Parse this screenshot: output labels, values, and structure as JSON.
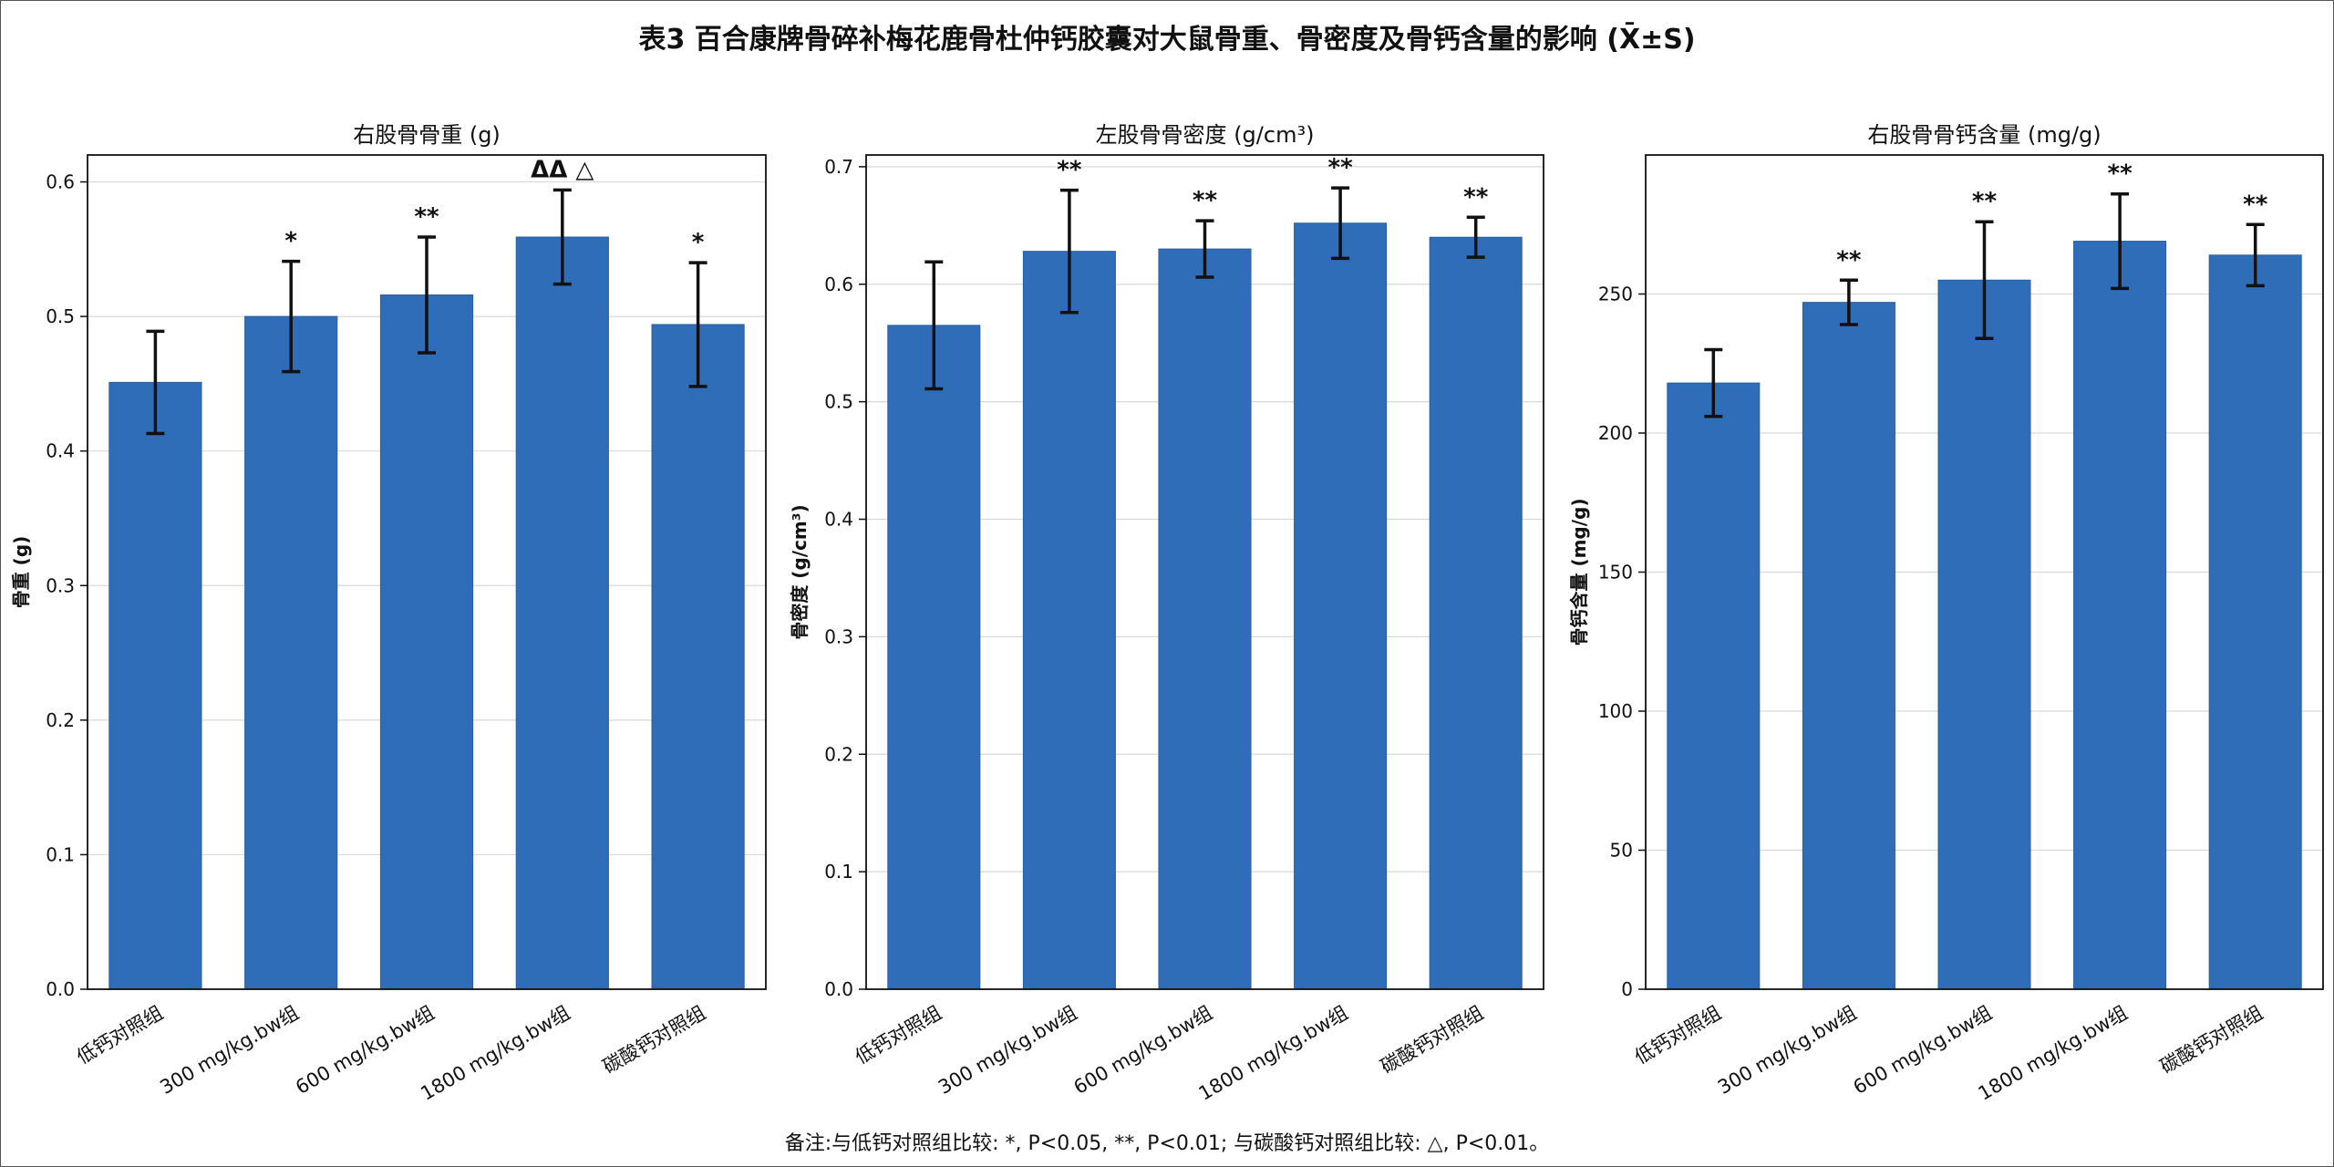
{
  "title": "表3 百合康牌骨碎补梅花鹿骨杜仲钙胶囊对大鼠骨重、骨密度及骨钙含量的影响 (X̄±S)",
  "footnote": "备注:与低钙对照组比较: *, P<0.05, **, P<0.01; 与碳酸钙对照组比较: △, P<0.01。",
  "colors": {
    "bar": "#2F6DB9",
    "bar_edge": "#2A5F9F",
    "error": "#111111",
    "grid": "#d9d9d9"
  },
  "chart_data": [
    {
      "type": "bar",
      "title": "右股骨骨重 (g)",
      "ylabel": "骨重 (g)",
      "categories": [
        "低钙对照组",
        "300 mg/kg.bw组",
        "600 mg/kg.bw组",
        "1800 mg/kg.bw组",
        "碳酸钙对照组"
      ],
      "values": [
        0.451,
        0.5,
        0.516,
        0.559,
        0.494
      ],
      "errors": [
        0.038,
        0.041,
        0.043,
        0.035,
        0.046
      ],
      "annotations": [
        "",
        "*",
        "**",
        "ΔΔ △",
        "*"
      ],
      "ylim": [
        0,
        0.62
      ],
      "yticks": [
        0.0,
        0.1,
        0.2,
        0.3,
        0.4,
        0.5,
        0.6
      ],
      "ytick_labels": [
        "0.0",
        "0.1",
        "0.2",
        "0.3",
        "0.4",
        "0.5",
        "0.6"
      ],
      "grid": true
    },
    {
      "type": "bar",
      "title": "左股骨骨密度 (g/cm³)",
      "ylabel": "骨密度 (g/cm³)",
      "categories": [
        "低钙对照组",
        "300 mg/kg.bw组",
        "600 mg/kg.bw组",
        "1800 mg/kg.bw组",
        "碳酸钙对照组"
      ],
      "values": [
        0.565,
        0.628,
        0.63,
        0.652,
        0.64
      ],
      "errors": [
        0.054,
        0.052,
        0.024,
        0.03,
        0.017
      ],
      "annotations": [
        "",
        "**",
        "**",
        "**",
        "**"
      ],
      "ylim": [
        0,
        0.71
      ],
      "yticks": [
        0.0,
        0.1,
        0.2,
        0.3,
        0.4,
        0.5,
        0.6,
        0.7
      ],
      "ytick_labels": [
        "0.0",
        "0.1",
        "0.2",
        "0.3",
        "0.4",
        "0.5",
        "0.6",
        "0.7"
      ],
      "grid": true
    },
    {
      "type": "bar",
      "title": "右股骨骨钙含量 (mg/g)",
      "ylabel": "骨钙含量 (mg/g)",
      "categories": [
        "低钙对照组",
        "300 mg/kg.bw组",
        "600 mg/kg.bw组",
        "1800 mg/kg.bw组",
        "碳酸钙对照组"
      ],
      "values": [
        218,
        247,
        255,
        269,
        264
      ],
      "errors": [
        12,
        8,
        21,
        17,
        11
      ],
      "annotations": [
        "",
        "**",
        "**",
        "**",
        "**"
      ],
      "ylim": [
        0,
        300
      ],
      "yticks": [
        0,
        50,
        100,
        150,
        200,
        250
      ],
      "ytick_labels": [
        "0",
        "50",
        "100",
        "150",
        "200",
        "250"
      ],
      "grid": true
    }
  ]
}
